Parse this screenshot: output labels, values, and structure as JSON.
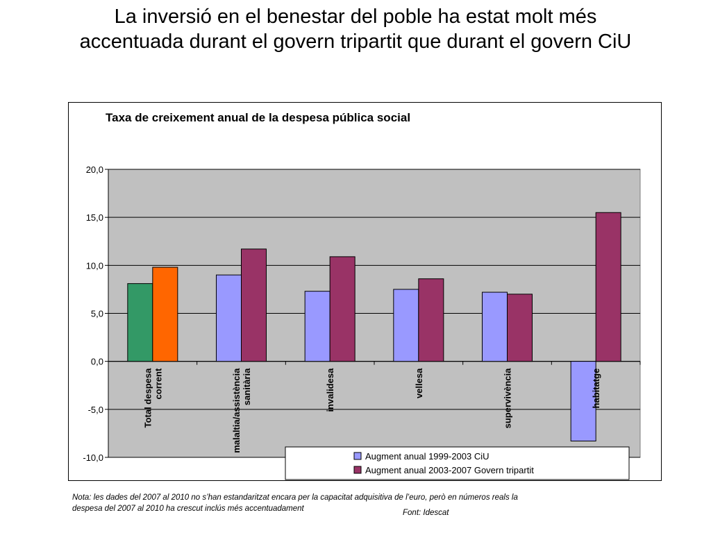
{
  "slide": {
    "title_line1": "La inversió en el benestar del poble ha estat molt més",
    "title_line2": "accentuada durant el govern tripartit que durant el govern CiU",
    "note_line1": "Nota: les dades del 2007 al 2010 no s’han estandaritzat encara per la capacitat adquisitiva de l’euro, però en números reals la",
    "note_line2": "despesa del 2007 al 2010 ha crescut inclús més accentuadament",
    "source": "Font: Idescat"
  },
  "chart_data": {
    "type": "bar",
    "title": "Taxa de creixement anual de la despesa pública social",
    "categories": [
      [
        "Total despesa",
        "corrent"
      ],
      [
        "malaltia/assistència",
        "sanitària"
      ],
      [
        "invalidesa"
      ],
      [
        "vellesa"
      ],
      [
        "supervivència"
      ],
      [
        "habitatge"
      ]
    ],
    "series": [
      {
        "name": "Augment anual 1999-2003 CiU",
        "color": "#9999ff",
        "values": [
          8.1,
          9.0,
          7.3,
          7.5,
          7.2,
          -8.3
        ]
      },
      {
        "name": "Augment anual 2003-2007 Govern tripartit",
        "color": "#993366",
        "values": [
          9.8,
          11.7,
          10.9,
          8.6,
          7.0,
          15.5
        ]
      }
    ],
    "highlight_colors": [
      "#339966",
      "#ff6600"
    ],
    "yticks": [
      "20,0",
      "15,0",
      "10,0",
      "5,0",
      "0,0",
      "-5,0",
      "-10,0"
    ],
    "ylim": [
      -10,
      20
    ],
    "plot_background": "#c0c0c0",
    "grid": true,
    "legend_position": "bottom-right"
  }
}
